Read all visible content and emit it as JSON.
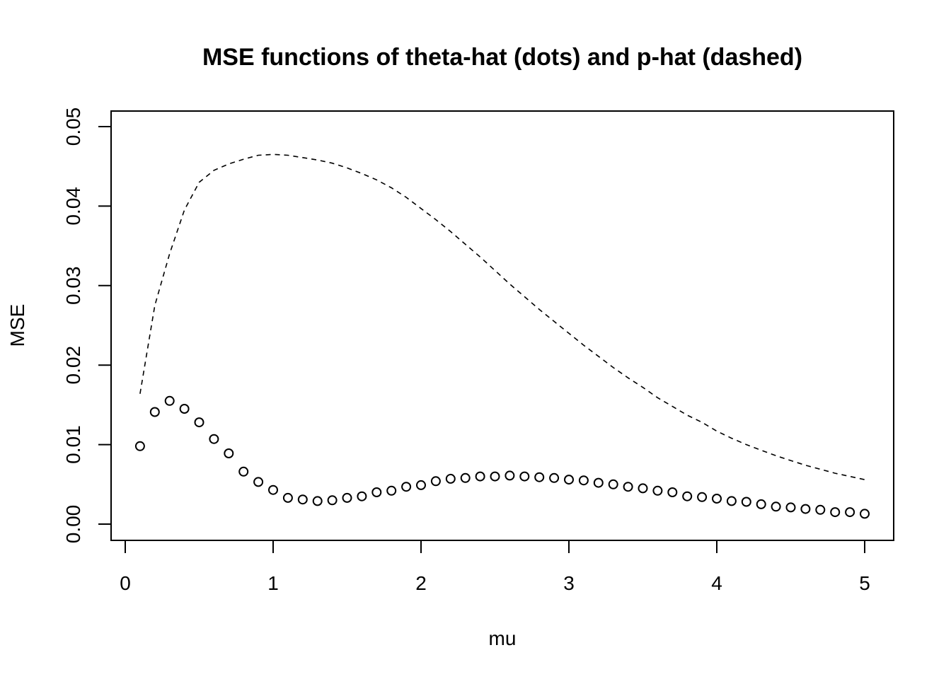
{
  "chart_data": {
    "type": "scatter",
    "title": "MSE functions of theta-hat (dots) and p-hat (dashed)",
    "xlabel": "mu",
    "ylabel": "MSE",
    "xlim": [
      0,
      5
    ],
    "ylim": [
      0,
      0.05
    ],
    "x_ticks": [
      0,
      1,
      2,
      3,
      4,
      5
    ],
    "x_tick_labels": [
      "0",
      "1",
      "2",
      "3",
      "4",
      "5"
    ],
    "y_ticks": [
      0,
      0.01,
      0.02,
      0.03,
      0.04,
      0.05
    ],
    "y_tick_labels": [
      "0.00",
      "0.01",
      "0.02",
      "0.03",
      "0.04",
      "0.05"
    ],
    "grid": false,
    "legend": "none",
    "series": [
      {
        "style": "points",
        "marker": "open-circle",
        "x": [
          0.1,
          0.2,
          0.3,
          0.4,
          0.5,
          0.6,
          0.7,
          0.8,
          0.9,
          1.0,
          1.1,
          1.2,
          1.3,
          1.4,
          1.5,
          1.6,
          1.7,
          1.8,
          1.9,
          2.0,
          2.1,
          2.2,
          2.3,
          2.4,
          2.5,
          2.6,
          2.7,
          2.8,
          2.9,
          3.0,
          3.1,
          3.2,
          3.3,
          3.4,
          3.5,
          3.6,
          3.7,
          3.8,
          3.9,
          4.0,
          4.1,
          4.2,
          4.3,
          4.4,
          4.5,
          4.6,
          4.7,
          4.8,
          4.9,
          5.0
        ],
        "y": [
          0.0098,
          0.0141,
          0.0155,
          0.0145,
          0.0128,
          0.0107,
          0.0089,
          0.0066,
          0.0053,
          0.0043,
          0.0033,
          0.0031,
          0.0029,
          0.003,
          0.0033,
          0.0035,
          0.004,
          0.0042,
          0.0047,
          0.0049,
          0.0054,
          0.0057,
          0.0058,
          0.006,
          0.006,
          0.0061,
          0.006,
          0.0059,
          0.0058,
          0.0056,
          0.0055,
          0.0052,
          0.005,
          0.0047,
          0.0045,
          0.0042,
          0.004,
          0.0035,
          0.0034,
          0.0032,
          0.0029,
          0.0028,
          0.0025,
          0.0022,
          0.0021,
          0.0019,
          0.0018,
          0.0015,
          0.0015,
          0.0013
        ]
      },
      {
        "style": "dashed-line",
        "x": [
          0.1,
          0.2,
          0.3,
          0.4,
          0.5,
          0.6,
          0.7,
          0.8,
          0.9,
          1.0,
          1.1,
          1.2,
          1.3,
          1.4,
          1.5,
          1.6,
          1.7,
          1.8,
          1.9,
          2.0,
          2.1,
          2.2,
          2.3,
          2.4,
          2.5,
          2.6,
          2.7,
          2.8,
          2.9,
          3.0,
          3.1,
          3.2,
          3.3,
          3.4,
          3.5,
          3.6,
          3.7,
          3.8,
          3.9,
          4.0,
          4.1,
          4.2,
          4.3,
          4.4,
          4.5,
          4.6,
          4.7,
          4.8,
          4.9,
          5.0
        ],
        "y": [
          0.0164,
          0.0275,
          0.034,
          0.0395,
          0.043,
          0.0445,
          0.0453,
          0.0459,
          0.0464,
          0.0465,
          0.0464,
          0.0461,
          0.0458,
          0.0454,
          0.0448,
          0.0441,
          0.0433,
          0.0423,
          0.0411,
          0.0397,
          0.0383,
          0.0368,
          0.0352,
          0.0336,
          0.0319,
          0.0302,
          0.0286,
          0.027,
          0.0255,
          0.024,
          0.0225,
          0.0211,
          0.0197,
          0.0184,
          0.0172,
          0.0159,
          0.0148,
          0.0137,
          0.0128,
          0.0117,
          0.0108,
          0.01,
          0.0093,
          0.0086,
          0.008,
          0.0074,
          0.0069,
          0.0064,
          0.006,
          0.0056
        ]
      }
    ]
  }
}
